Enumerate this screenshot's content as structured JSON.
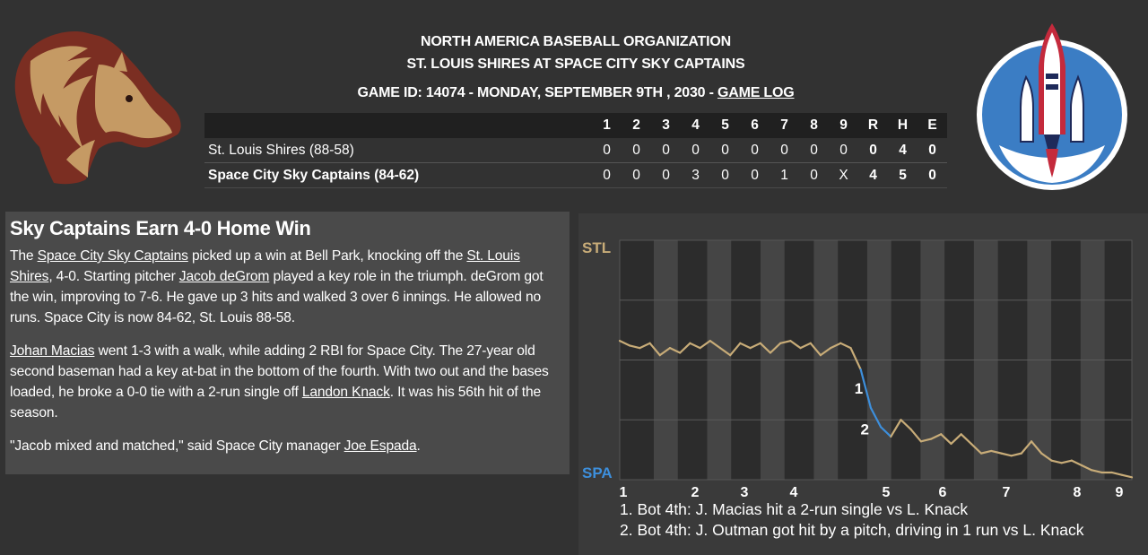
{
  "header": {
    "league": "NORTH AMERICA BASEBALL ORGANIZATION",
    "matchup": "ST. LOUIS SHIRES AT SPACE CITY SKY CAPTAINS",
    "game_info": "GAME ID: 14074 - MONDAY, SEPTEMBER 9TH , 2030 - ",
    "game_log_link": "GAME LOG"
  },
  "logos": {
    "away": "horse-head-logo",
    "home": "space-shuttle-logo"
  },
  "box_score": {
    "headers": [
      "1",
      "2",
      "3",
      "4",
      "5",
      "6",
      "7",
      "8",
      "9",
      "R",
      "H",
      "E"
    ],
    "rows": [
      {
        "team": "St. Louis Shires (88-58)",
        "innings": [
          "0",
          "0",
          "0",
          "0",
          "0",
          "0",
          "0",
          "0",
          "0"
        ],
        "R": "0",
        "H": "4",
        "E": "0"
      },
      {
        "team": "Space City Sky Captains (84-62)",
        "innings": [
          "0",
          "0",
          "0",
          "3",
          "0",
          "0",
          "1",
          "0",
          "X"
        ],
        "R": "4",
        "H": "5",
        "E": "0"
      }
    ]
  },
  "recap": {
    "headline": "Sky Captains Earn 4-0 Home Win",
    "p1": {
      "t1": "The ",
      "l1": "Space City Sky Captains",
      "t2": " picked up a win at Bell Park, knocking off the ",
      "l2": "St. Louis Shires",
      "t3": ", 4-0. Starting pitcher ",
      "l3": "Jacob deGrom",
      "t4": " played a key role in the triumph. deGrom got the win, improving to 7-6. He gave up 3 hits and walked 3 over 6 innings. He allowed no runs. Space City is now 84-62, St. Louis 88-58."
    },
    "p2": {
      "l1": "Johan Macias",
      "t1": " went 1-3 with a walk, while adding 2 RBI for Space City. The 27-year old second baseman had a key at-bat in the bottom of the fourth. With two out and the bases loaded, he broke a 0-0 tie with a 2-run single off ",
      "l2": "Landon Knack",
      "t2": ". It was his 56th hit of the season."
    },
    "p3": {
      "t1": "\"Jacob mixed and matched,\" said Space City manager ",
      "l1": "Joe Espada",
      "t2": "."
    }
  },
  "chart_data": {
    "type": "line",
    "top_label": "STL",
    "bottom_label": "SPA",
    "x_ticks": [
      "1",
      "2",
      "3",
      "4",
      "5",
      "6",
      "7",
      "8",
      "9"
    ],
    "colors": {
      "stl": "#c8ac78",
      "spa": "#3d8fdc"
    },
    "values": [
      0.58,
      0.56,
      0.55,
      0.57,
      0.52,
      0.55,
      0.53,
      0.57,
      0.55,
      0.58,
      0.55,
      0.52,
      0.57,
      0.55,
      0.57,
      0.53,
      0.57,
      0.58,
      0.55,
      0.57,
      0.52,
      0.55,
      0.57,
      0.55,
      0.46,
      0.3,
      0.22,
      0.18,
      0.25,
      0.21,
      0.16,
      0.17,
      0.19,
      0.15,
      0.19,
      0.15,
      0.11,
      0.12,
      0.11,
      0.1,
      0.11,
      0.16,
      0.11,
      0.08,
      0.07,
      0.08,
      0.06,
      0.04,
      0.03,
      0.03,
      0.02,
      0.01
    ],
    "markers": [
      {
        "label": "1",
        "x": 4.75,
        "y": 0.36
      },
      {
        "label": "2",
        "x": 4.85,
        "y": 0.19
      }
    ],
    "notes": [
      "1. Bot 4th: J. Macias hit a 2-run single vs L. Knack",
      "2. Bot 4th: J. Outman got hit by a pitch, driving in 1 run vs L. Knack"
    ]
  }
}
